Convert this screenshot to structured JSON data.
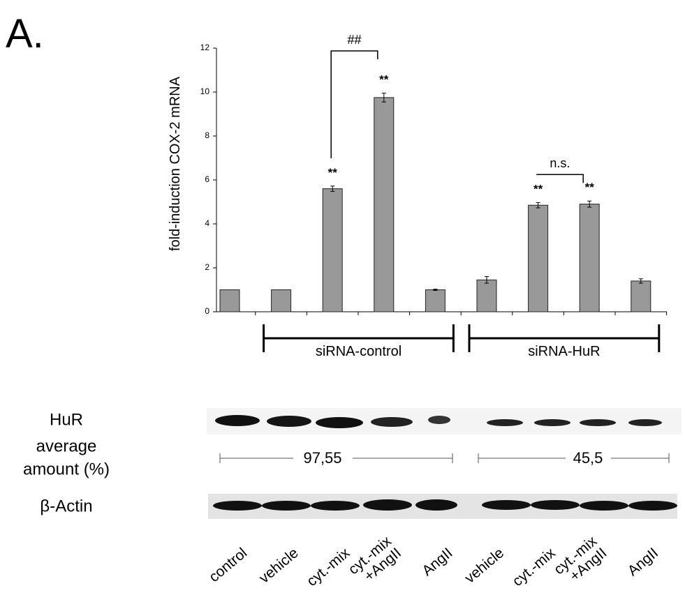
{
  "panel_label": "A.",
  "chart_data": {
    "type": "bar",
    "ylabel": "fold-induction  COX-2 mRNA",
    "categories": [
      "control",
      "vehicle",
      "cyt.-mix",
      "cyt.-mix +AngII",
      "AngII",
      "vehicle",
      "cyt.-mix",
      "cyt.-mix +AngII",
      "AngII"
    ],
    "values": [
      1,
      1,
      5.6,
      9.75,
      1,
      1.45,
      4.85,
      4.9,
      1.4
    ],
    "errors": [
      0,
      0,
      0.12,
      0.2,
      0.03,
      0.15,
      0.12,
      0.14,
      0.1
    ],
    "markers": [
      null,
      null,
      "**",
      "**",
      null,
      null,
      "**",
      "**",
      null
    ],
    "comparisons": [
      {
        "label": "##",
        "bars": [
          2,
          3
        ]
      },
      {
        "label": "n.s.",
        "bars": [
          6,
          7
        ]
      }
    ],
    "groups": [
      {
        "label": "siRNA-control",
        "bars": [
          1,
          4
        ]
      },
      {
        "label": "siRNA-HuR",
        "bars": [
          5,
          8
        ]
      }
    ],
    "color": "#999999",
    "ylim": [
      0,
      12
    ],
    "yticks": [
      0,
      2,
      4,
      6,
      8,
      10,
      12
    ]
  },
  "blot": {
    "labels": [
      "HuR",
      "average",
      "amount (%)",
      "β-Actin"
    ],
    "average_amounts": [
      "97,55",
      "45,5"
    ]
  }
}
